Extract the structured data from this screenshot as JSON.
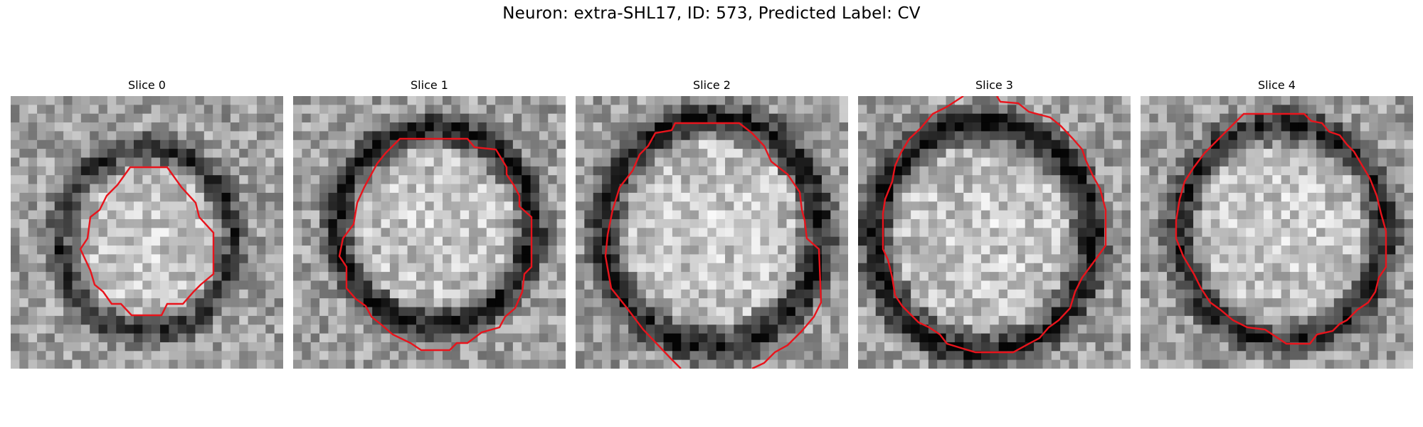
{
  "figure": {
    "title": "Neuron: extra-SHL17, ID: 573, Predicted Label: CV"
  },
  "panels": [
    {
      "label": "Slice 0",
      "ring_darkness": 0.45,
      "contour_color": "#e8141c"
    },
    {
      "label": "Slice 1",
      "ring_darkness": 0.6,
      "contour_color": "#e8141c"
    },
    {
      "label": "Slice 2",
      "ring_darkness": 0.55,
      "contour_color": "#e8141c"
    },
    {
      "label": "Slice 3",
      "ring_darkness": 0.6,
      "contour_color": "#e8141c"
    },
    {
      "label": "Slice 4",
      "ring_darkness": 0.5,
      "contour_color": "#e8141c"
    }
  ],
  "colors": {
    "image_colormap": "grayscale",
    "contour": "#e8141c",
    "background": "#ffffff"
  }
}
